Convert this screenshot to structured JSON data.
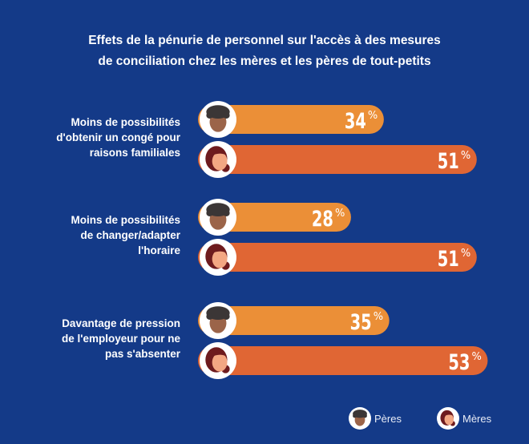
{
  "chart_data": {
    "type": "bar",
    "orientation": "horizontal",
    "title": "Effets de la pénurie de personnel sur l'accès à des mesures de conciliation chez les mères et les pères de tout-petits",
    "title_lines": [
      "Effets de la pénurie de personnel sur l'accès à des mesures",
      "de conciliation chez les mères et les pères de tout-petits"
    ],
    "categories": [
      [
        "Moins de possibilités",
        "d'obtenir un congé pour",
        "raisons familiales"
      ],
      [
        "Moins de possibilités",
        "de changer/adapter",
        "l'horaire"
      ],
      [
        "Davantage de pression",
        "de l'employeur pour ne",
        "pas s'absenter"
      ]
    ],
    "series": [
      {
        "name": "Pères",
        "values": [
          34,
          28,
          35
        ],
        "color": "#eb8f37",
        "icon": "father-avatar-icon"
      },
      {
        "name": "Mères",
        "values": [
          51,
          51,
          53
        ],
        "color": "#e06634",
        "icon": "mother-avatar-icon"
      }
    ],
    "unit": "%",
    "legend": {
      "position": "bottom-right",
      "items": [
        "Pères",
        "Mères"
      ]
    },
    "background": "#143a88"
  }
}
